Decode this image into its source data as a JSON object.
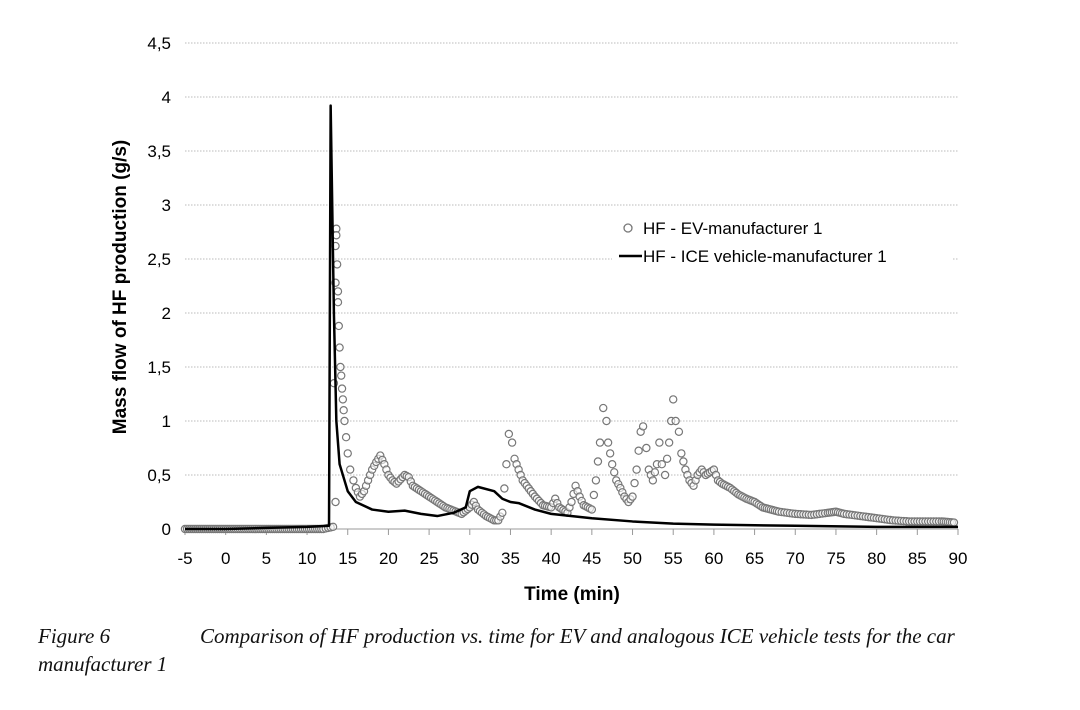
{
  "chart_data": {
    "type": "scatter+line",
    "title": "",
    "xlabel": "Time (min)",
    "ylabel": "Mass flow of HF production (g/s)",
    "xlim": [
      -5,
      90
    ],
    "ylim": [
      0,
      4.5
    ],
    "xticks": [
      "-5",
      "0",
      "5",
      "10",
      "15",
      "20",
      "25",
      "30",
      "35",
      "40",
      "45",
      "50",
      "55",
      "60",
      "65",
      "70",
      "75",
      "80",
      "85",
      "90"
    ],
    "yticks": [
      "0",
      "0,5",
      "1",
      "1,5",
      "2",
      "2,5",
      "3",
      "3,5",
      "4",
      "4,5"
    ],
    "grid": "horizontal dotted",
    "legend_position": "center-right",
    "series": [
      {
        "name": "HF - EV-manufacturer 1",
        "style": "open-circle",
        "color": "#777777",
        "points": [
          [
            -5,
            0
          ],
          [
            -4,
            0
          ],
          [
            -3,
            0
          ],
          [
            -2,
            0
          ],
          [
            -1,
            0
          ],
          [
            0,
            0
          ],
          [
            1,
            0
          ],
          [
            2,
            0
          ],
          [
            3,
            0
          ],
          [
            4,
            0
          ],
          [
            5,
            0
          ],
          [
            6,
            0
          ],
          [
            7,
            0
          ],
          [
            8,
            0
          ],
          [
            9,
            0
          ],
          [
            10,
            0
          ],
          [
            11,
            0
          ],
          [
            12,
            0
          ],
          [
            13.2,
            0.02
          ],
          [
            13.5,
            0.25
          ],
          [
            13.3,
            1.35
          ],
          [
            13.6,
            2.78
          ],
          [
            13.6,
            2.72
          ],
          [
            13.5,
            2.62
          ],
          [
            13.7,
            2.45
          ],
          [
            13.5,
            2.28
          ],
          [
            13.8,
            2.2
          ],
          [
            13.8,
            2.1
          ],
          [
            13.9,
            1.88
          ],
          [
            14,
            1.68
          ],
          [
            14.1,
            1.5
          ],
          [
            14.2,
            1.42
          ],
          [
            14.3,
            1.3
          ],
          [
            14.4,
            1.2
          ],
          [
            14.5,
            1.1
          ],
          [
            14.6,
            1.0
          ],
          [
            14.8,
            0.85
          ],
          [
            15,
            0.7
          ],
          [
            15.3,
            0.55
          ],
          [
            15.7,
            0.45
          ],
          [
            16,
            0.38
          ],
          [
            16.5,
            0.3
          ],
          [
            17,
            0.35
          ],
          [
            17.5,
            0.45
          ],
          [
            18,
            0.55
          ],
          [
            18.5,
            0.62
          ],
          [
            19,
            0.68
          ],
          [
            19.5,
            0.6
          ],
          [
            20,
            0.5
          ],
          [
            20.5,
            0.45
          ],
          [
            21,
            0.42
          ],
          [
            22,
            0.5
          ],
          [
            22.5,
            0.48
          ],
          [
            23,
            0.4
          ],
          [
            24,
            0.35
          ],
          [
            25,
            0.3
          ],
          [
            26,
            0.25
          ],
          [
            27,
            0.2
          ],
          [
            28,
            0.17
          ],
          [
            29,
            0.14
          ],
          [
            30,
            0.2
          ],
          [
            30.5,
            0.25
          ],
          [
            31,
            0.18
          ],
          [
            32,
            0.12
          ],
          [
            33,
            0.08
          ],
          [
            33.5,
            0.08
          ],
          [
            34,
            0.15
          ],
          [
            34.5,
            0.6
          ],
          [
            34.8,
            0.88
          ],
          [
            35.2,
            0.8
          ],
          [
            35.5,
            0.65
          ],
          [
            36,
            0.55
          ],
          [
            36.5,
            0.45
          ],
          [
            37,
            0.4
          ],
          [
            38,
            0.3
          ],
          [
            39,
            0.22
          ],
          [
            40,
            0.2
          ],
          [
            40.5,
            0.28
          ],
          [
            41,
            0.2
          ],
          [
            42,
            0.15
          ],
          [
            42.5,
            0.25
          ],
          [
            43,
            0.4
          ],
          [
            43.5,
            0.3
          ],
          [
            44,
            0.22
          ],
          [
            45,
            0.18
          ],
          [
            45.5,
            0.45
          ],
          [
            46,
            0.8
          ],
          [
            46.4,
            1.12
          ],
          [
            46.8,
            1.0
          ],
          [
            47,
            0.8
          ],
          [
            47.5,
            0.6
          ],
          [
            48,
            0.45
          ],
          [
            48.5,
            0.38
          ],
          [
            49,
            0.3
          ],
          [
            49.5,
            0.25
          ],
          [
            50,
            0.3
          ],
          [
            50.5,
            0.55
          ],
          [
            51,
            0.9
          ],
          [
            51.3,
            0.95
          ],
          [
            51.7,
            0.75
          ],
          [
            52,
            0.55
          ],
          [
            52.5,
            0.45
          ],
          [
            53,
            0.6
          ],
          [
            53.3,
            0.8
          ],
          [
            53.6,
            0.6
          ],
          [
            54,
            0.5
          ],
          [
            54.5,
            0.8
          ],
          [
            55,
            1.2
          ],
          [
            55.3,
            1.0
          ],
          [
            55.7,
            0.9
          ],
          [
            56,
            0.7
          ],
          [
            56.5,
            0.55
          ],
          [
            57,
            0.45
          ],
          [
            57.5,
            0.4
          ],
          [
            58,
            0.5
          ],
          [
            58.5,
            0.55
          ],
          [
            59,
            0.5
          ],
          [
            60,
            0.55
          ],
          [
            60.5,
            0.45
          ],
          [
            61,
            0.42
          ],
          [
            62,
            0.38
          ],
          [
            63,
            0.32
          ],
          [
            64,
            0.28
          ],
          [
            65,
            0.25
          ],
          [
            66,
            0.2
          ],
          [
            67,
            0.18
          ],
          [
            68,
            0.16
          ],
          [
            70,
            0.14
          ],
          [
            72,
            0.13
          ],
          [
            74,
            0.15
          ],
          [
            75,
            0.16
          ],
          [
            76,
            0.14
          ],
          [
            78,
            0.12
          ],
          [
            80,
            0.1
          ],
          [
            82,
            0.08
          ],
          [
            84,
            0.07
          ],
          [
            86,
            0.07
          ],
          [
            88,
            0.07
          ],
          [
            89.5,
            0.06
          ]
        ]
      },
      {
        "name": "HF - ICE vehicle-manufacturer 1",
        "style": "line",
        "color": "#000000",
        "points": [
          [
            -5,
            0
          ],
          [
            0,
            0
          ],
          [
            5,
            0.01
          ],
          [
            10,
            0.02
          ],
          [
            12.7,
            0.03
          ],
          [
            12.9,
            3.92
          ],
          [
            13.3,
            2.0
          ],
          [
            13.6,
            1.0
          ],
          [
            14,
            0.6
          ],
          [
            15,
            0.35
          ],
          [
            16,
            0.25
          ],
          [
            18,
            0.18
          ],
          [
            20,
            0.16
          ],
          [
            22,
            0.17
          ],
          [
            24,
            0.14
          ],
          [
            26,
            0.12
          ],
          [
            28,
            0.15
          ],
          [
            29.5,
            0.2
          ],
          [
            30,
            0.35
          ],
          [
            31,
            0.39
          ],
          [
            33,
            0.35
          ],
          [
            34,
            0.28
          ],
          [
            35,
            0.25
          ],
          [
            36,
            0.24
          ],
          [
            38,
            0.18
          ],
          [
            40,
            0.14
          ],
          [
            45,
            0.1
          ],
          [
            50,
            0.07
          ],
          [
            55,
            0.05
          ],
          [
            60,
            0.04
          ],
          [
            70,
            0.03
          ],
          [
            80,
            0.02
          ],
          [
            90,
            0.02
          ]
        ]
      }
    ]
  },
  "caption": {
    "label": "Figure 6",
    "text": "Comparison of HF production vs. time for EV and analogous ICE vehicle tests for the car manufacturer 1"
  }
}
